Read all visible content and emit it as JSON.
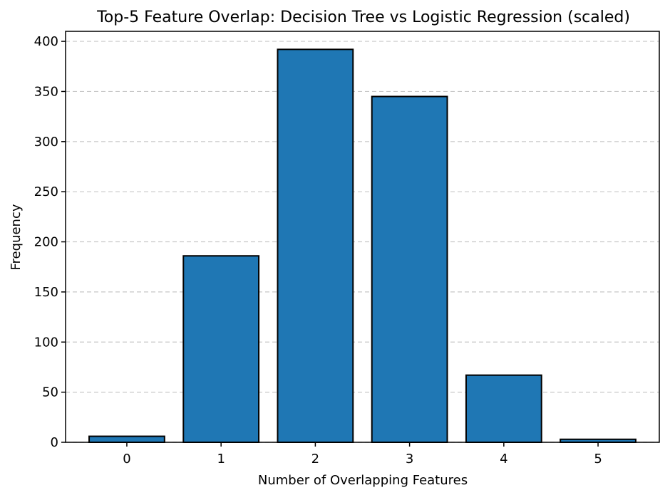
{
  "chart_data": {
    "type": "bar",
    "title": "Top-5 Feature Overlap: Decision Tree vs Logistic Regression (scaled)",
    "xlabel": "Number of Overlapping Features",
    "ylabel": "Frequency",
    "categories": [
      "0",
      "1",
      "2",
      "3",
      "4",
      "5"
    ],
    "values": [
      6,
      186,
      392,
      345,
      67,
      3
    ],
    "ylim": [
      0,
      410
    ],
    "yticks": [
      0,
      50,
      100,
      150,
      200,
      250,
      300,
      350,
      400
    ],
    "grid": "y-dashed",
    "bar_color": "#1f77b4",
    "edge_color": "#000000"
  }
}
